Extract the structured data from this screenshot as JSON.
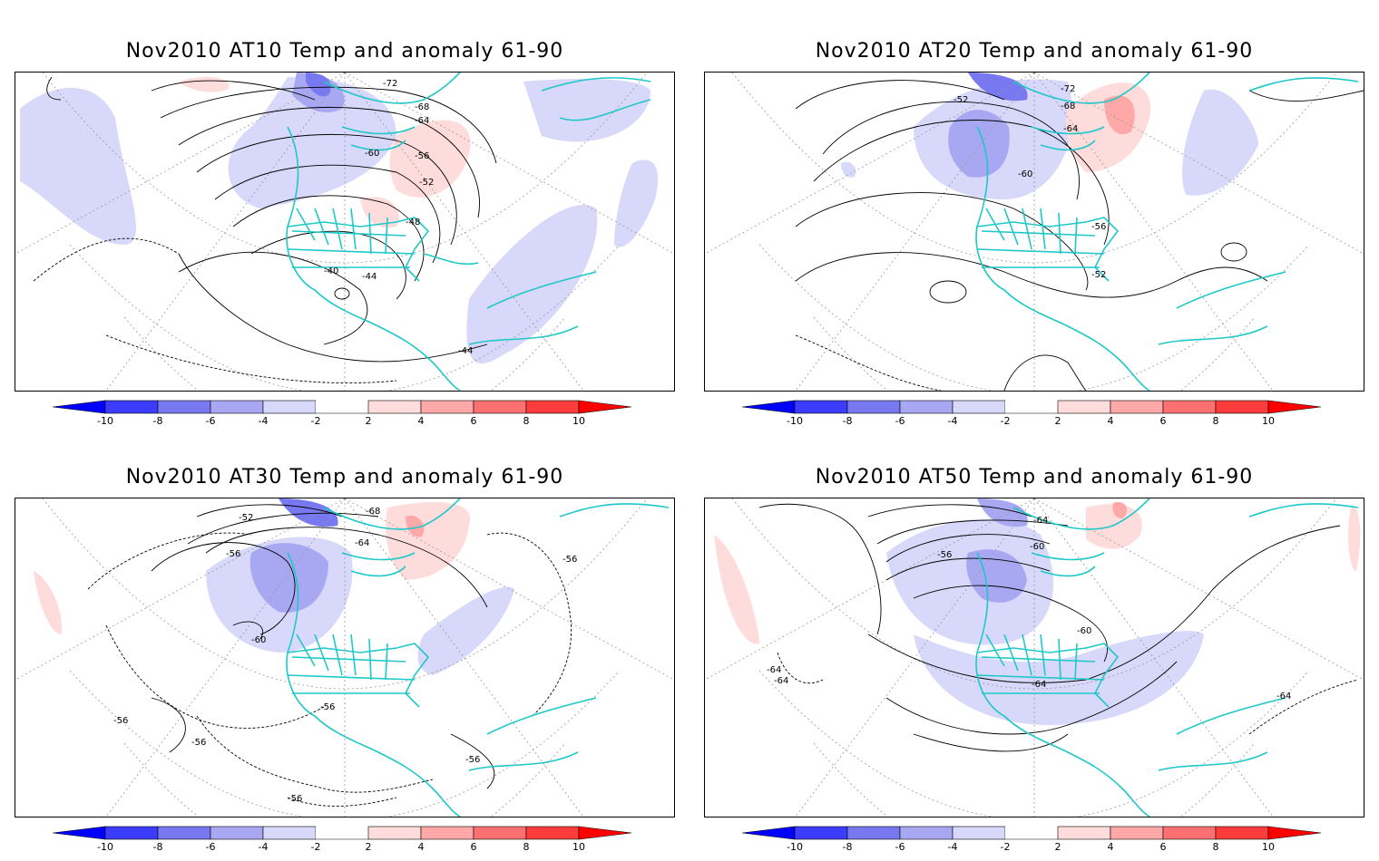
{
  "panels": [
    {
      "title": "Nov2010 AT10 Temp and anomaly 61-90",
      "contour_labels": [
        "-72",
        "-68",
        "-64",
        "-60",
        "-56",
        "-52",
        "-48",
        "-44",
        "-40",
        "-44"
      ]
    },
    {
      "title": "Nov2010 AT20 Temp and anomaly 61-90",
      "contour_labels": [
        "-72",
        "-68",
        "-64",
        "-60",
        "-56",
        "-52",
        "-52"
      ]
    },
    {
      "title": "Nov2010 AT30 Temp and anomaly 61-90",
      "contour_labels": [
        "-68",
        "-64",
        "-52",
        "-56",
        "-60",
        "-56",
        "-56",
        "-56",
        "-56",
        "-56",
        "-56"
      ]
    },
    {
      "title": "Nov2010 AT50 Temp and anomaly 61-90",
      "contour_labels": [
        "-64",
        "-60",
        "-56",
        "-60",
        "-64",
        "-64",
        "-64",
        "-64"
      ]
    }
  ],
  "colorbar": {
    "labels": [
      "-10",
      "-8",
      "-6",
      "-4",
      "-2",
      "2",
      "4",
      "6",
      "8",
      "10"
    ],
    "colors": [
      "#0000ff",
      "#3c3cff",
      "#7878f0",
      "#a8a8f2",
      "#d8d8fa",
      "#ffffff",
      "#ffdcdc",
      "#ffa8a8",
      "#ff7070",
      "#ff3c3c",
      "#ff0000"
    ]
  },
  "colors": {
    "coastline": "#1ec8c8",
    "negative_anomaly": "#9a9af0",
    "positive_anomaly": "#ffb0b0"
  }
}
